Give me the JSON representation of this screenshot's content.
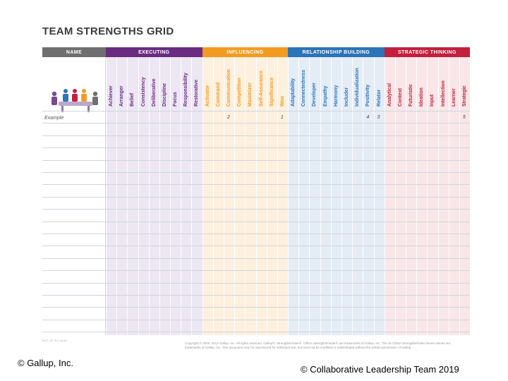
{
  "title": "TEAM STRENGTHS GRID",
  "colors": {
    "name": "#6f6f6f",
    "executing": "#6a2c80",
    "influencing": "#f39b21",
    "relationship": "#2b74b8",
    "strategic": "#c2203d",
    "executing_bg": "#ece7f3",
    "influencing_bg": "#fdf0de",
    "relationship_bg": "#e4ecf6",
    "strategic_bg": "#f8e6e8",
    "grid_line": "#cfd6dd"
  },
  "headers": {
    "name": "NAME",
    "executing": "EXECUTING",
    "influencing": "INFLUENCING",
    "relationship": "RELATIONSHIP BUILDING",
    "strategic": "STRATEGIC THINKING"
  },
  "themes": {
    "executing": [
      "Achiever",
      "Arranger",
      "Belief",
      "Consistency",
      "Deliberative",
      "Discipline",
      "Focus",
      "Responsibility",
      "Restorative"
    ],
    "influencing": [
      "Activator",
      "Command",
      "Communication",
      "Competition",
      "Maximizer",
      "Self-Assurance",
      "Significance",
      "Woo"
    ],
    "relationship": [
      "Adaptability",
      "Connectedness",
      "Developer",
      "Empathy",
      "Harmony",
      "Includer",
      "Individualization",
      "Positivity",
      "Relator"
    ],
    "strategic": [
      "Analytical",
      "Context",
      "Futuristic",
      "Ideation",
      "Input",
      "Intellection",
      "Learner",
      "Strategic"
    ]
  },
  "example_row": {
    "label": "Example",
    "marks": [
      {
        "theme": "Communication",
        "value": "2"
      },
      {
        "theme": "Woo",
        "value": "1"
      },
      {
        "theme": "Positivity",
        "value": "4"
      },
      {
        "theme": "Relator",
        "value": "3"
      },
      {
        "theme": "Strategic",
        "value": "5"
      }
    ]
  },
  "footer": {
    "code": "NCT_10_3.0_ex/10",
    "copyright": "Copyright © 2000, 2012 Gallup, Inc. All rights reserved. Gallup®, StrengthsFinder®, Clifton StrengthsFinder® are trademarks of Gallup, Inc. The 34 Clifton StrengthsFinder theme names are trademarks of Gallup, Inc. This document may be reproduced for individual use, but must not be modified or redistributed without the written permission of Gallup."
  },
  "credits": {
    "left": "© Gallup, Inc.",
    "right": "© Collaborative Leadership Team 2019"
  }
}
